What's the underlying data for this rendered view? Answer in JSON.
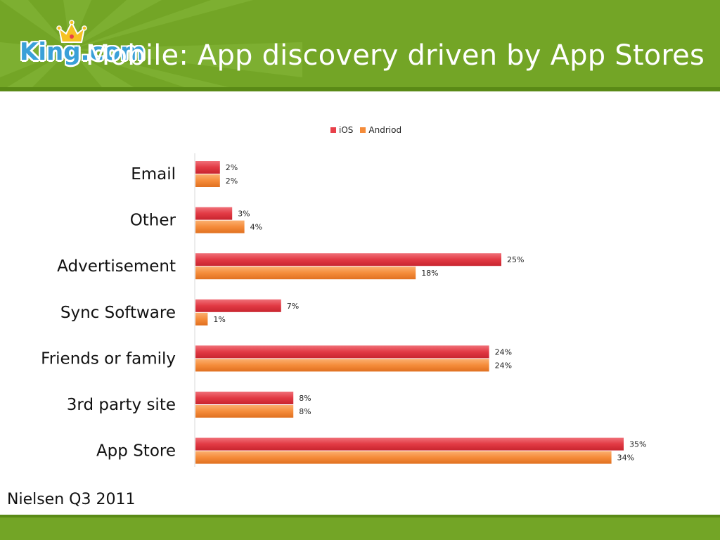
{
  "header": {
    "title": "Mobile: App discovery driven by App Stores",
    "logo_text": "King.com"
  },
  "footer": {
    "source": "Nielsen Q3 2011"
  },
  "colors": {
    "green": "#73a526",
    "ios": "#e8404a",
    "android": "#f58c3a"
  },
  "chart_data": {
    "type": "bar",
    "orientation": "horizontal",
    "categories": [
      "Email",
      "Other",
      "Advertisement",
      "Sync Software",
      "Friends or family",
      "3rd party site",
      "App Store"
    ],
    "series": [
      {
        "name": "iOS",
        "values": [
          2,
          3,
          25,
          7,
          24,
          8,
          35
        ],
        "labels": [
          "2%",
          "3%",
          "25%",
          "7%",
          "24%",
          "8%",
          "35%"
        ]
      },
      {
        "name": "Andriod",
        "values": [
          2,
          4,
          18,
          1,
          24,
          8,
          34
        ],
        "labels": [
          "2%",
          "4%",
          "18%",
          "1%",
          "24%",
          "8%",
          "34%"
        ]
      }
    ],
    "value_unit": "%",
    "xlim": [
      0,
      36
    ],
    "legend_position": "top",
    "grid": false
  }
}
